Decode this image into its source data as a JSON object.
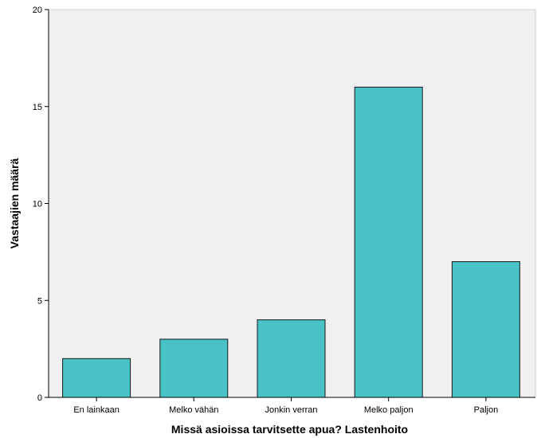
{
  "chart_data": {
    "type": "bar",
    "title": "",
    "xlabel": "Missä asioissa tarvitsette apua? Lastenhoito",
    "ylabel": "Vastaajien määrä",
    "categories": [
      "En lainkaan",
      "Melko vähän",
      "Jonkin verran",
      "Melko paljon",
      "Paljon"
    ],
    "values": [
      2,
      3,
      4,
      16,
      7
    ],
    "ylim": [
      0,
      20
    ],
    "yticks": [
      0,
      5,
      10,
      15,
      20
    ],
    "grid": false,
    "legend": "none",
    "colors": {
      "bar_fill": "#48C2C5",
      "bar_stroke": "#1a1a1a",
      "plot_background": "#F0F0F0",
      "axis": "#000000"
    }
  }
}
